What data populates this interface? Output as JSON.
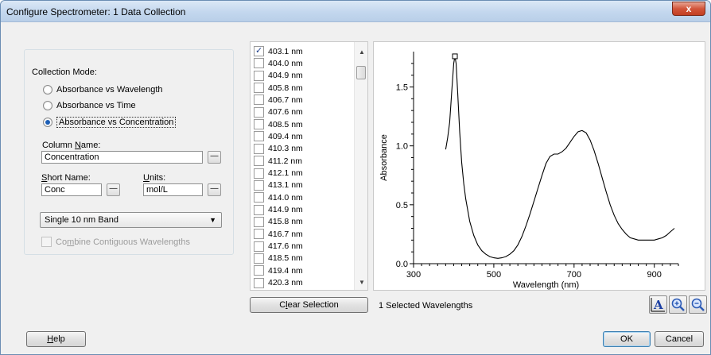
{
  "window": {
    "title": "Configure Spectrometer: 1 Data Collection",
    "close_glyph": "x"
  },
  "collection_mode": {
    "label": "Collection Mode:",
    "options": [
      {
        "label": "Absorbance vs Wavelength",
        "checked": false
      },
      {
        "label": "Absorbance vs Time",
        "checked": false
      },
      {
        "label": "Absorbance vs Concentration",
        "checked": true
      }
    ]
  },
  "column_name": {
    "label_pre": "Column ",
    "label_key": "N",
    "label_post": "ame:",
    "value": "Concentration"
  },
  "short_name": {
    "label_key": "S",
    "label_post": "hort Name:",
    "value": "Conc"
  },
  "units": {
    "label_key": "U",
    "label_post": "nits:",
    "value": "mol/L"
  },
  "band": {
    "value": "Single 10 nm Band"
  },
  "combine": {
    "label_pre": "Co",
    "label_key": "m",
    "label_post": "bine Contiguous Wavelengths",
    "checked": false
  },
  "wavelengths": [
    {
      "label": "403.1 nm",
      "checked": true
    },
    {
      "label": "404.0 nm",
      "checked": false
    },
    {
      "label": "404.9 nm",
      "checked": false
    },
    {
      "label": "405.8 nm",
      "checked": false
    },
    {
      "label": "406.7 nm",
      "checked": false
    },
    {
      "label": "407.6 nm",
      "checked": false
    },
    {
      "label": "408.5 nm",
      "checked": false
    },
    {
      "label": "409.4 nm",
      "checked": false
    },
    {
      "label": "410.3 nm",
      "checked": false
    },
    {
      "label": "411.2 nm",
      "checked": false
    },
    {
      "label": "412.1 nm",
      "checked": false
    },
    {
      "label": "413.1 nm",
      "checked": false
    },
    {
      "label": "414.0 nm",
      "checked": false
    },
    {
      "label": "414.9 nm",
      "checked": false
    },
    {
      "label": "415.8 nm",
      "checked": false
    },
    {
      "label": "416.7 nm",
      "checked": false
    },
    {
      "label": "417.6 nm",
      "checked": false
    },
    {
      "label": "418.5 nm",
      "checked": false
    },
    {
      "label": "419.4 nm",
      "checked": false
    },
    {
      "label": "420.3 nm",
      "checked": false
    }
  ],
  "clear_selection": {
    "label_pre": "C",
    "label_key": "l",
    "label_post": "ear Selection"
  },
  "status": {
    "selected": "1 Selected Wavelengths"
  },
  "buttons": {
    "help_key": "H",
    "help_post": "elp",
    "ok": "OK",
    "cancel": "Cancel"
  },
  "toolbar_icons": [
    "autoscale-icon",
    "zoom-in-icon",
    "zoom-out-icon"
  ],
  "chart_data": {
    "type": "line",
    "title": "",
    "xlabel": "Wavelength (nm)",
    "ylabel": "Absorbance",
    "xlim": [
      300,
      960
    ],
    "ylim": [
      0.0,
      1.8
    ],
    "x_ticks": [
      "300",
      "500",
      "700",
      "900"
    ],
    "y_ticks": [
      "0.0",
      "0.5",
      "1.0",
      "1.5"
    ],
    "grid": false,
    "marker": {
      "x": 403.1,
      "y": 1.76
    },
    "series": [
      {
        "x": [
          380,
          385,
          390,
          395,
          400,
          403,
          406,
          410,
          415,
          420,
          425,
          430,
          440,
          450,
          460,
          470,
          480,
          490,
          500,
          510,
          520,
          530,
          540,
          550,
          560,
          570,
          580,
          590,
          600,
          610,
          620,
          630,
          640,
          650,
          660,
          670,
          680,
          690,
          700,
          710,
          720,
          730,
          740,
          750,
          760,
          770,
          780,
          790,
          800,
          810,
          820,
          830,
          840,
          850,
          860,
          870,
          880,
          890,
          900,
          910,
          920,
          930,
          940,
          950
        ],
        "y": [
          0.97,
          1.07,
          1.2,
          1.45,
          1.7,
          1.76,
          1.7,
          1.45,
          1.12,
          0.86,
          0.68,
          0.55,
          0.36,
          0.24,
          0.16,
          0.11,
          0.08,
          0.06,
          0.05,
          0.045,
          0.05,
          0.06,
          0.08,
          0.11,
          0.16,
          0.23,
          0.32,
          0.42,
          0.53,
          0.64,
          0.75,
          0.85,
          0.91,
          0.93,
          0.93,
          0.95,
          0.98,
          1.03,
          1.08,
          1.12,
          1.13,
          1.11,
          1.05,
          0.96,
          0.85,
          0.73,
          0.61,
          0.5,
          0.41,
          0.34,
          0.29,
          0.25,
          0.22,
          0.21,
          0.2,
          0.2,
          0.2,
          0.2,
          0.2,
          0.21,
          0.22,
          0.24,
          0.27,
          0.3
        ]
      }
    ]
  }
}
